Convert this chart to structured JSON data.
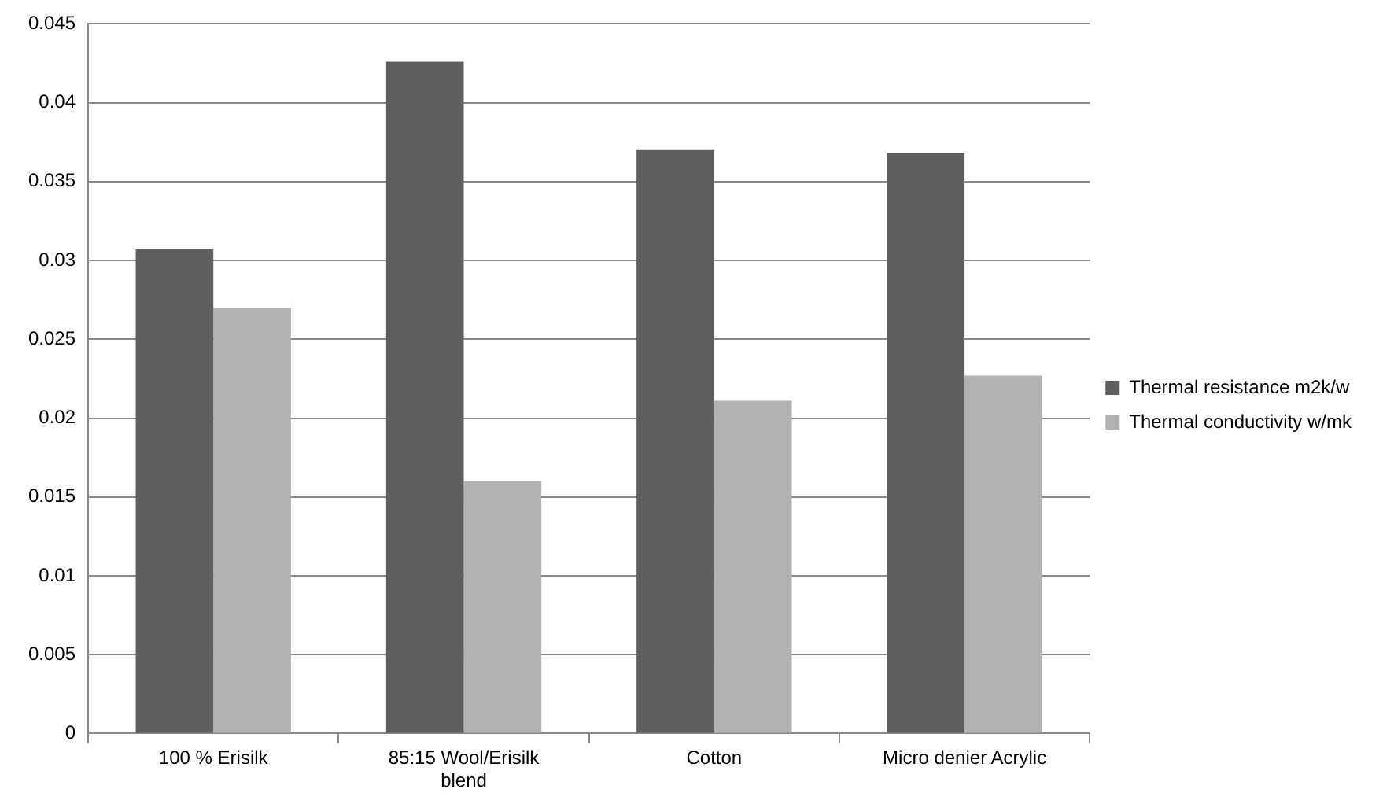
{
  "chart_data": {
    "type": "bar",
    "categories": [
      "100 % Erisilk",
      "85:15 Wool/Erisilk blend",
      "Cotton",
      "Micro denier Acrylic"
    ],
    "series": [
      {
        "name": "Thermal resistance m2k/w",
        "color": "#5f5f5f",
        "values": [
          0.0307,
          0.0426,
          0.037,
          0.0368
        ]
      },
      {
        "name": "Thermal conductivity w/mk",
        "color": "#b2b2b2",
        "values": [
          0.027,
          0.016,
          0.0211,
          0.0227
        ]
      }
    ],
    "ylim": [
      0,
      0.045
    ],
    "yticks": [
      0,
      0.005,
      0.01,
      0.015,
      0.02,
      0.025,
      0.03,
      0.035,
      0.04,
      0.045
    ],
    "grid": "y",
    "legend": "right"
  }
}
